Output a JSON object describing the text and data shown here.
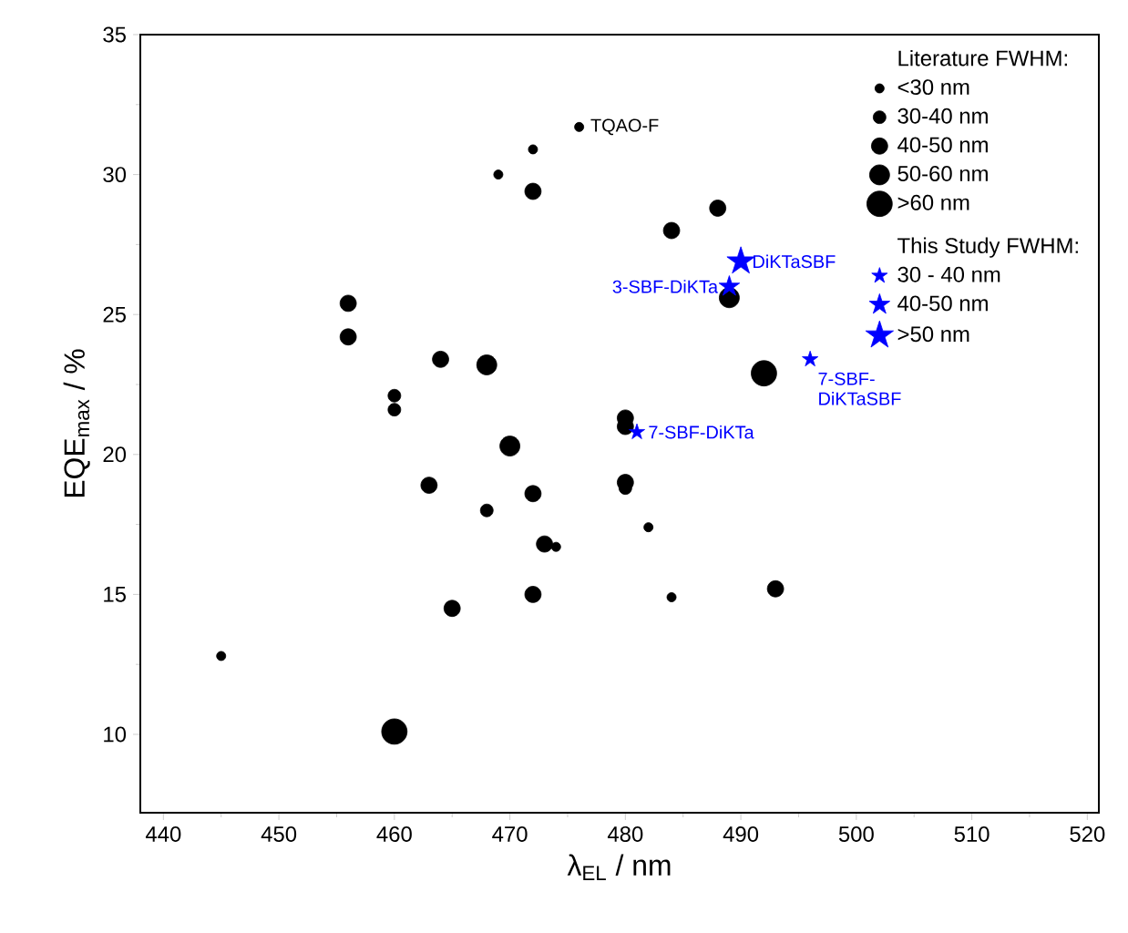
{
  "chart_data": {
    "type": "bubble",
    "xlabel": "λ$_{EL}$ / nm",
    "ylabel": "EQE$_{max}$ / %",
    "legend_title": "Literature FWHM:",
    "xlim": [
      438,
      521
    ],
    "ylim": [
      7.2,
      35
    ],
    "xticks": [
      440,
      450,
      460,
      470,
      480,
      490,
      500,
      510,
      520
    ],
    "yticks": [
      10,
      15,
      20,
      25,
      30,
      35
    ],
    "legend": "top right",
    "grid": false,
    "series": [
      {
        "name": "<30 nm",
        "color": "#000000",
        "marker": "circle",
        "x": [
          476,
          472,
          469,
          482,
          474,
          484,
          445
        ],
        "values": [
          31.7,
          30.9,
          30.0,
          17.4,
          16.7,
          14.9,
          12.8
        ],
        "sizes": [
          0.13,
          0.13,
          0.13,
          0.13,
          0.13,
          0.13,
          0.13
        ]
      },
      {
        "name": "30-40 nm",
        "color": "#000000",
        "marker": "circle",
        "x": [
          460,
          460,
          468,
          480
        ],
        "values": [
          22.1,
          21.6,
          18.0,
          18.8
        ],
        "sizes": [
          0.25,
          0.25,
          0.25,
          0.25
        ]
      },
      {
        "name": "40-50 nm",
        "color": "#000000",
        "marker": "circle",
        "x": [
          472,
          488,
          484,
          456,
          456,
          464,
          480,
          480,
          463,
          480,
          472,
          473,
          472,
          465,
          493
        ],
        "values": [
          29.4,
          28.8,
          28.0,
          25.4,
          24.2,
          23.4,
          21.3,
          21.0,
          18.9,
          19.0,
          18.6,
          16.8,
          15.0,
          14.5,
          15.2
        ],
        "sizes": [
          0.41,
          0.41,
          0.41,
          0.41,
          0.41,
          0.41,
          0.41,
          0.41,
          0.41,
          0.41,
          0.41,
          0.41,
          0.41,
          0.41,
          0.41
        ]
      },
      {
        "name": "50-60 nm",
        "color": "#000000",
        "marker": "circle",
        "x": [
          489,
          468,
          470
        ],
        "values": [
          25.6,
          23.2,
          20.3
        ],
        "sizes": [
          0.62,
          0.62,
          0.62
        ]
      },
      {
        "name": ">60 nm",
        "color": "#000000",
        "marker": "circle",
        "x": [
          460,
          492
        ],
        "values": [
          10.1,
          22.9
        ],
        "sizes": [
          1,
          1
        ]
      },
      {
        "name": "30 - 40 nm",
        "color": "#0000ff",
        "marker": "star",
        "x": [
          481,
          496
        ],
        "values": [
          20.8,
          23.4
        ],
        "sizes": [
          0.15,
          0.15
        ]
      },
      {
        "name": "40-50 nm",
        "color": "#0000ff",
        "marker": "star",
        "x": [
          489
        ],
        "values": [
          26.0
        ],
        "sizes": [
          0.26
        ]
      },
      {
        "name": ">50 nm",
        "color": "#0000ff",
        "marker": "star",
        "x": [
          490
        ],
        "values": [
          26.9
        ],
        "sizes": [
          0.47
        ]
      }
    ],
    "annotations": [
      {
        "text": "TQAO-F",
        "x": 476,
        "y": 31.7
      },
      {
        "text": "DiKTaSBF",
        "x": 490,
        "y": 26.9
      },
      {
        "text": "3-SBF-DiKTa",
        "x": 489,
        "y": 26.0
      },
      {
        "text": "7-SBF-DiKTaSBF",
        "x": 496,
        "y": 23.4
      },
      {
        "text": "7-SBF-DiKTa",
        "x": 481,
        "y": 20.8
      },
      "This Study FWHM:"
    ]
  }
}
